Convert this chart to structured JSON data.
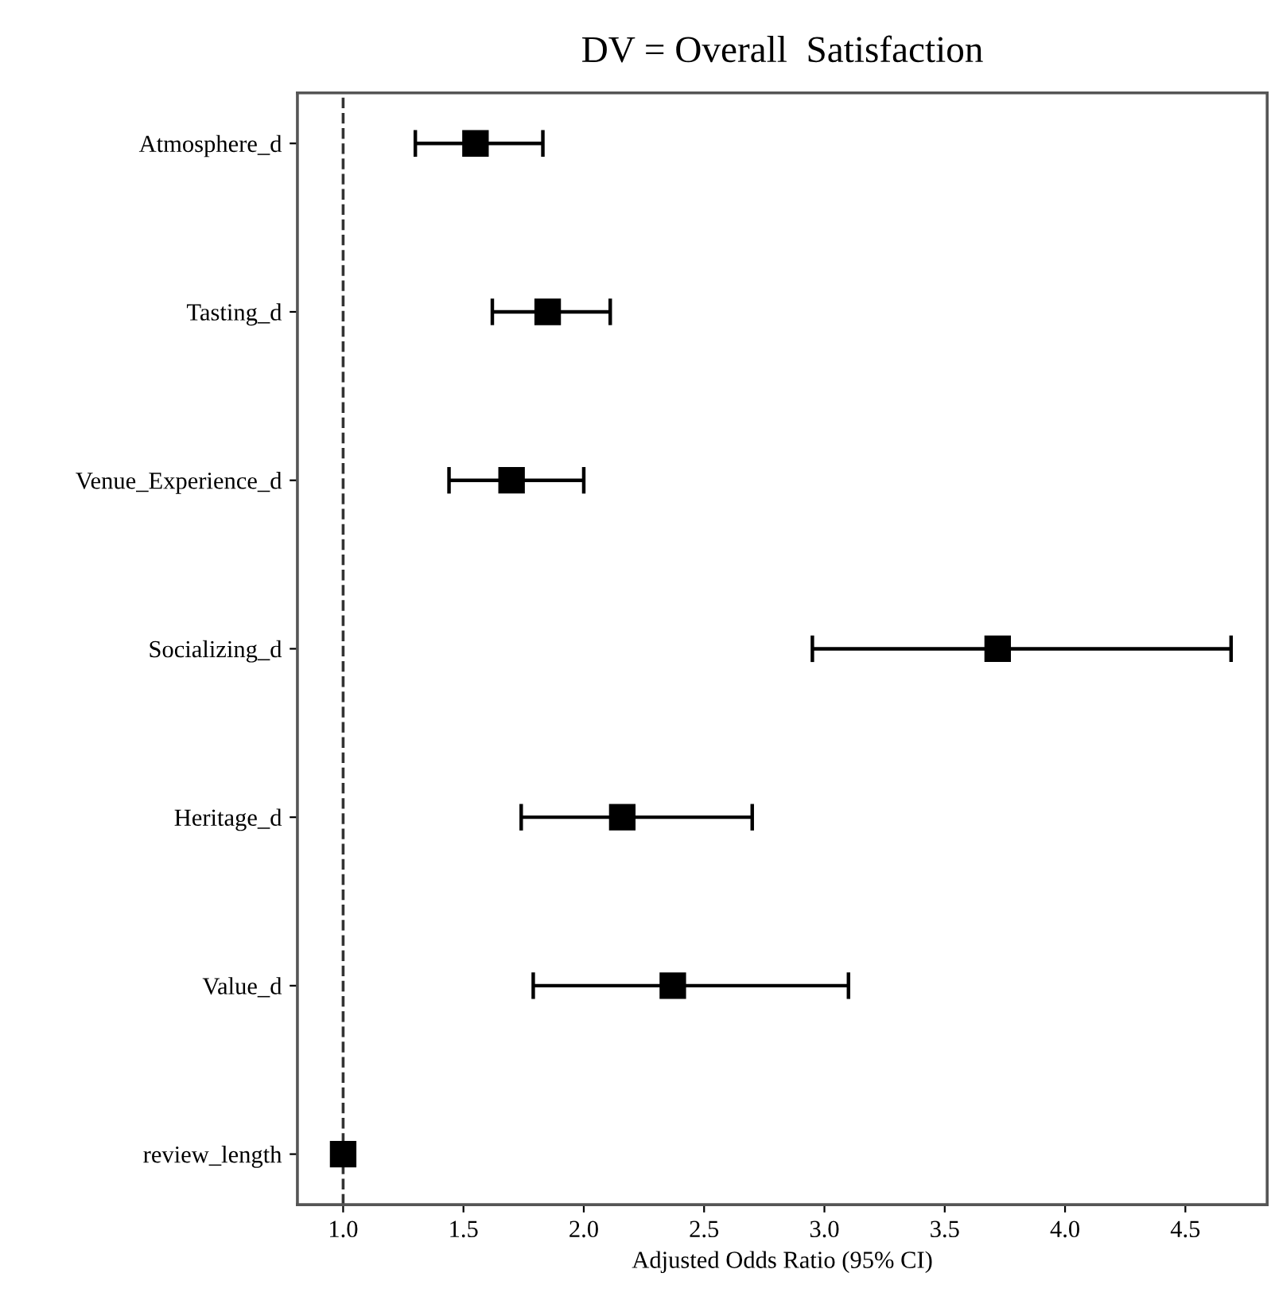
{
  "chart_data": {
    "type": "scatter",
    "title": "DV = Overall  Satisfaction",
    "xlabel": "Adjusted Odds Ratio (95% CI)",
    "orientation": "horizontal",
    "categories": [
      "Atmosphere_d",
      "Tasting_d",
      "Venue_Experience_d",
      "Socializing_d",
      "Heritage_d",
      "Value_d",
      "review_length"
    ],
    "values": [
      1.55,
      1.85,
      1.7,
      3.72,
      2.16,
      2.37,
      1.0
    ],
    "errors": [
      [
        1.3,
        1.83
      ],
      [
        1.62,
        2.11
      ],
      [
        1.44,
        2.0
      ],
      [
        2.95,
        4.69
      ],
      [
        1.74,
        2.7
      ],
      [
        1.79,
        3.1
      ],
      null
    ],
    "color": "#000000",
    "marker": "square",
    "xlim": [
      0.81,
      4.84
    ],
    "xticks": [
      {
        "value": 1,
        "label": "1.0"
      },
      1.5,
      {
        "value": 2,
        "label": "2.0"
      },
      2.5,
      {
        "value": 3,
        "label": "3.0"
      },
      3.5,
      {
        "value": 4,
        "label": "4.0"
      },
      4.5
    ],
    "ref_lines": [
      {
        "axis": "x",
        "value": 1.0,
        "line_style": "dashed",
        "color": "#333333"
      }
    ],
    "grid": false
  }
}
